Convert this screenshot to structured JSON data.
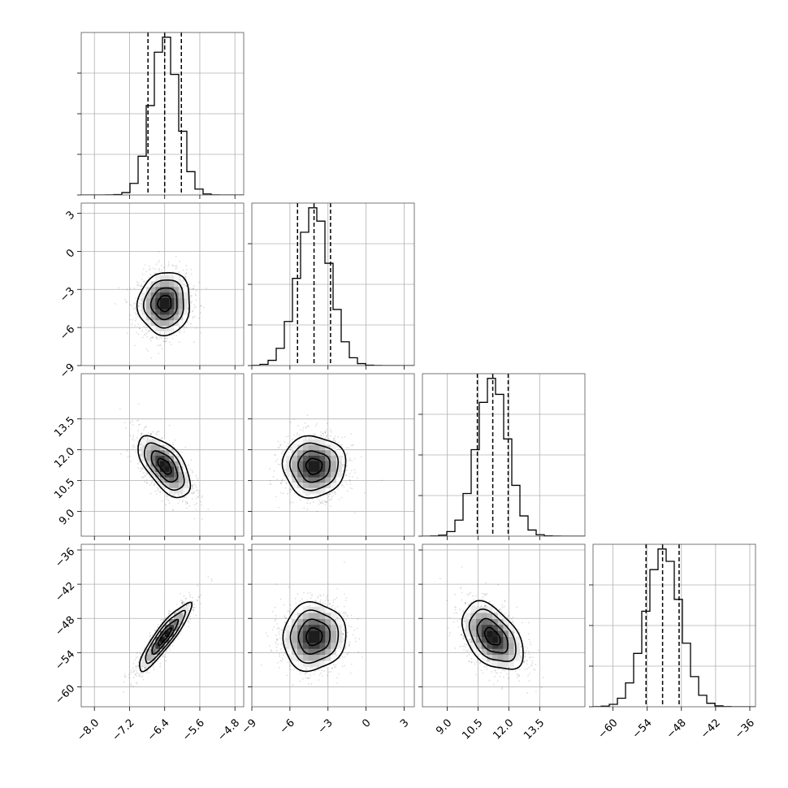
{
  "chart_data": {
    "type": "scatter",
    "grid": true,
    "params": [
      {
        "range": [
          -8.3,
          -4.6
        ],
        "ticks": [
          -8.0,
          -7.2,
          -6.4,
          -5.6,
          -4.8
        ],
        "tick_labels": [
          "−8.0",
          "−7.2",
          "−6.4",
          "−5.6",
          "−4.8"
        ],
        "quantiles": [
          -6.78,
          -6.4,
          -6.02
        ],
        "mean": -6.4,
        "sd": 0.3
      },
      {
        "range": [
          -9.0,
          3.8
        ],
        "ticks": [
          -9,
          -6,
          -3,
          0,
          3
        ],
        "tick_labels": [
          "−9",
          "−6",
          "−3",
          "0",
          "3"
        ],
        "quantiles": [
          -5.4,
          -4.1,
          -2.8
        ],
        "mean": -4.1,
        "sd": 1.25
      },
      {
        "range": [
          7.8,
          15.7
        ],
        "ticks": [
          9.0,
          10.5,
          12.0,
          13.5
        ],
        "tick_labels": [
          "9.0",
          "10.5",
          "12.0",
          "13.5"
        ],
        "quantiles": [
          10.47,
          11.22,
          11.97
        ],
        "mean": 11.2,
        "sd": 0.75
      },
      {
        "range": [
          -63.5,
          -35.0
        ],
        "ticks": [
          -60,
          -54,
          -48,
          -42,
          -36
        ],
        "tick_labels": [
          "−60",
          "−54",
          "−48",
          "−42",
          "−36"
        ],
        "quantiles": [
          -54.2,
          -51.3,
          -48.4
        ],
        "mean": -51.2,
        "sd": 3.0
      }
    ],
    "correlations": {
      "1-0": 0.05,
      "2-0": -0.6,
      "2-1": 0.0,
      "3-0": 0.9,
      "3-1": 0.05,
      "3-2": -0.45
    },
    "histogram_bins": 20,
    "contour_levels": [
      0.12,
      0.39,
      0.68,
      0.86
    ],
    "scatter_points_per_panel": 1400
  }
}
